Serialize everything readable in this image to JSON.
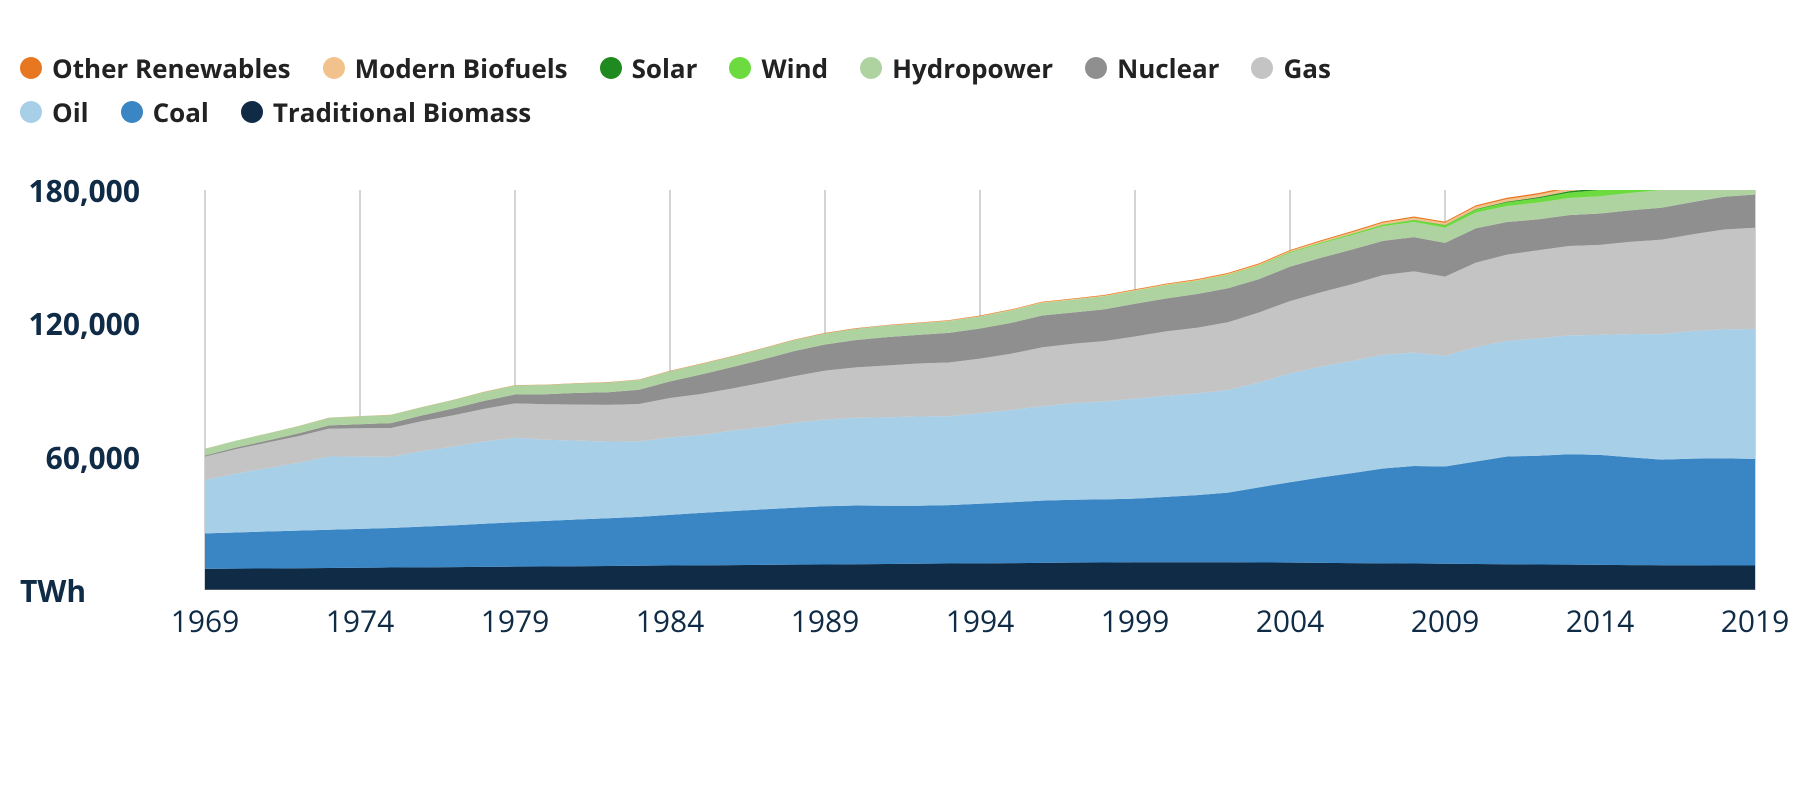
{
  "chart": {
    "type": "stacked-area",
    "unit_label": "TWh",
    "background_color": "#ffffff",
    "grid_color": "#a8a8a8",
    "axis_font_color": "#0f2b46",
    "legend_font_color": "#222222",
    "legend_fontsize": 26,
    "axis_fontsize": 30,
    "ylim": [
      0,
      180000
    ],
    "yticks": [
      60000,
      120000,
      180000
    ],
    "ytick_labels": [
      "60,000",
      "120,000",
      "180,000"
    ],
    "years": [
      1969,
      1970,
      1971,
      1972,
      1973,
      1974,
      1975,
      1976,
      1977,
      1978,
      1979,
      1980,
      1981,
      1982,
      1983,
      1984,
      1985,
      1986,
      1987,
      1988,
      1989,
      1990,
      1991,
      1992,
      1993,
      1994,
      1995,
      1996,
      1997,
      1998,
      1999,
      2000,
      2001,
      2002,
      2003,
      2004,
      2005,
      2006,
      2007,
      2008,
      2009,
      2010,
      2011,
      2012,
      2013,
      2014,
      2015,
      2016,
      2017,
      2018,
      2019
    ],
    "xtick_years": [
      1969,
      1974,
      1979,
      1984,
      1989,
      1994,
      1999,
      2004,
      2009,
      2014,
      2019
    ],
    "series": [
      {
        "key": "traditional_biomass",
        "label": "Traditional Biomass",
        "color": "#0f2b46",
        "values": [
          9500,
          9600,
          9700,
          9800,
          9900,
          10000,
          10100,
          10200,
          10300,
          10400,
          10500,
          10600,
          10700,
          10800,
          10900,
          11000,
          11100,
          11200,
          11300,
          11400,
          11500,
          11600,
          11700,
          11800,
          11900,
          12000,
          12100,
          12200,
          12300,
          12400,
          12500,
          12500,
          12500,
          12500,
          12400,
          12300,
          12200,
          12100,
          12000,
          11900,
          11800,
          11700,
          11600,
          11500,
          11400,
          11300,
          11200,
          11150,
          11100,
          11050,
          11000
        ]
      },
      {
        "key": "coal",
        "label": "Coal",
        "color": "#3a86c4",
        "values": [
          16000,
          16300,
          16600,
          16900,
          17200,
          17500,
          17800,
          18300,
          18800,
          19400,
          20000,
          20500,
          21000,
          21500,
          22000,
          22800,
          23600,
          24300,
          25000,
          25600,
          26200,
          26400,
          26200,
          26100,
          26300,
          26800,
          27400,
          28000,
          28300,
          28400,
          28600,
          29400,
          30200,
          31300,
          33800,
          36200,
          38500,
          40500,
          42700,
          43900,
          43800,
          46100,
          48500,
          48900,
          49700,
          49500,
          48500,
          47500,
          48000,
          48200,
          48000
        ]
      },
      {
        "key": "oil",
        "label": "Oil",
        "color": "#a7cfe8",
        "values": [
          24000,
          26500,
          28500,
          30500,
          33000,
          32500,
          32000,
          34000,
          35500,
          37000,
          38000,
          36500,
          35500,
          34500,
          34000,
          34800,
          35000,
          36200,
          37000,
          38200,
          39000,
          39500,
          39800,
          40200,
          40000,
          40800,
          41500,
          42500,
          43500,
          44000,
          45000,
          45500,
          45800,
          46200,
          47200,
          49000,
          49800,
          50500,
          51200,
          51000,
          49800,
          51500,
          52000,
          52800,
          53500,
          54000,
          55500,
          56500,
          57500,
          58000,
          58500
        ]
      },
      {
        "key": "gas",
        "label": "Gas",
        "color": "#c4c4c4",
        "values": [
          10500,
          11000,
          11500,
          12000,
          12500,
          12800,
          13000,
          13500,
          14000,
          14700,
          15500,
          16000,
          16300,
          16500,
          16800,
          17800,
          18500,
          19000,
          20000,
          21000,
          22000,
          22700,
          23300,
          23800,
          24200,
          24500,
          25300,
          26500,
          26700,
          27200,
          28000,
          29000,
          29500,
          30500,
          31500,
          32500,
          33500,
          34500,
          35800,
          36600,
          35600,
          38000,
          38800,
          39700,
          40200,
          40500,
          41500,
          42500,
          43500,
          45000,
          45500
        ]
      },
      {
        "key": "nuclear",
        "label": "Nuclear",
        "color": "#8f8f8f",
        "values": [
          500,
          700,
          900,
          1200,
          1500,
          1800,
          2200,
          2600,
          3100,
          3600,
          4000,
          4500,
          5200,
          5700,
          6400,
          7500,
          8800,
          9600,
          10500,
          11300,
          11800,
          12300,
          12800,
          12900,
          13300,
          13600,
          13900,
          14300,
          14100,
          14300,
          14700,
          14800,
          15200,
          15300,
          15000,
          15500,
          15500,
          15600,
          15400,
          15400,
          15200,
          15500,
          14700,
          13900,
          13900,
          14100,
          14200,
          14400,
          14500,
          14700,
          15000
        ]
      },
      {
        "key": "hydropower",
        "label": "Hydropower",
        "color": "#afd3a0",
        "values": [
          3000,
          3100,
          3200,
          3300,
          3400,
          3600,
          3700,
          3700,
          3800,
          4000,
          4100,
          4200,
          4300,
          4400,
          4500,
          4600,
          4700,
          4800,
          4900,
          5000,
          5000,
          5100,
          5200,
          5200,
          5400,
          5400,
          5600,
          5700,
          5700,
          5800,
          5800,
          5900,
          5800,
          5900,
          5900,
          6200,
          6400,
          6500,
          6600,
          6800,
          6800,
          7100,
          7200,
          7500,
          7700,
          7800,
          7800,
          8000,
          8000,
          8200,
          8300
        ]
      },
      {
        "key": "wind",
        "label": "Wind",
        "color": "#6bdb3f",
        "values": [
          0,
          0,
          0,
          0,
          0,
          0,
          0,
          0,
          0,
          0,
          0,
          0,
          0,
          0,
          0,
          0,
          0,
          0,
          0,
          0,
          5,
          10,
          15,
          20,
          25,
          30,
          40,
          50,
          60,
          80,
          100,
          130,
          170,
          220,
          280,
          360,
          450,
          570,
          720,
          900,
          1100,
          1350,
          1650,
          2000,
          2400,
          2800,
          3300,
          3800,
          4400,
          4900,
          5500
        ]
      },
      {
        "key": "solar",
        "label": "Solar",
        "color": "#1f8a1f",
        "values": [
          0,
          0,
          0,
          0,
          0,
          0,
          0,
          0,
          0,
          0,
          0,
          0,
          0,
          0,
          0,
          0,
          0,
          0,
          0,
          0,
          0,
          0,
          0,
          0,
          0,
          0,
          1,
          2,
          3,
          5,
          7,
          10,
          13,
          17,
          22,
          30,
          40,
          55,
          75,
          100,
          140,
          200,
          300,
          450,
          650,
          900,
          1200,
          1600,
          2100,
          2700,
          3300
        ]
      },
      {
        "key": "modern_biofuels",
        "label": "Modern Biofuels",
        "color": "#f2c28c",
        "values": [
          0,
          0,
          0,
          0,
          0,
          0,
          0,
          0,
          0,
          0,
          0,
          0,
          0,
          0,
          0,
          0,
          0,
          0,
          0,
          0,
          0,
          30,
          50,
          80,
          100,
          130,
          150,
          180,
          210,
          240,
          280,
          300,
          330,
          380,
          450,
          500,
          570,
          680,
          800,
          920,
          1000,
          1100,
          1150,
          1200,
          1280,
          1350,
          1400,
          1450,
          1520,
          1600,
          1650
        ]
      },
      {
        "key": "other_renewables",
        "label": "Other Renewables",
        "color": "#e87722",
        "values": [
          40,
          45,
          50,
          55,
          60,
          65,
          70,
          76,
          82,
          88,
          95,
          102,
          110,
          118,
          126,
          135,
          144,
          154,
          164,
          175,
          186,
          198,
          210,
          223,
          236,
          250,
          265,
          280,
          296,
          313,
          330,
          348,
          367,
          387,
          408,
          430,
          453,
          477,
          502,
          528,
          555,
          583,
          612,
          643,
          675,
          709,
          744,
          781,
          820,
          861,
          900
        ]
      }
    ],
    "legend_order": [
      "other_renewables",
      "modern_biofuels",
      "solar",
      "wind",
      "hydropower",
      "nuclear",
      "gas",
      "oil",
      "coal",
      "traditional_biomass"
    ]
  }
}
